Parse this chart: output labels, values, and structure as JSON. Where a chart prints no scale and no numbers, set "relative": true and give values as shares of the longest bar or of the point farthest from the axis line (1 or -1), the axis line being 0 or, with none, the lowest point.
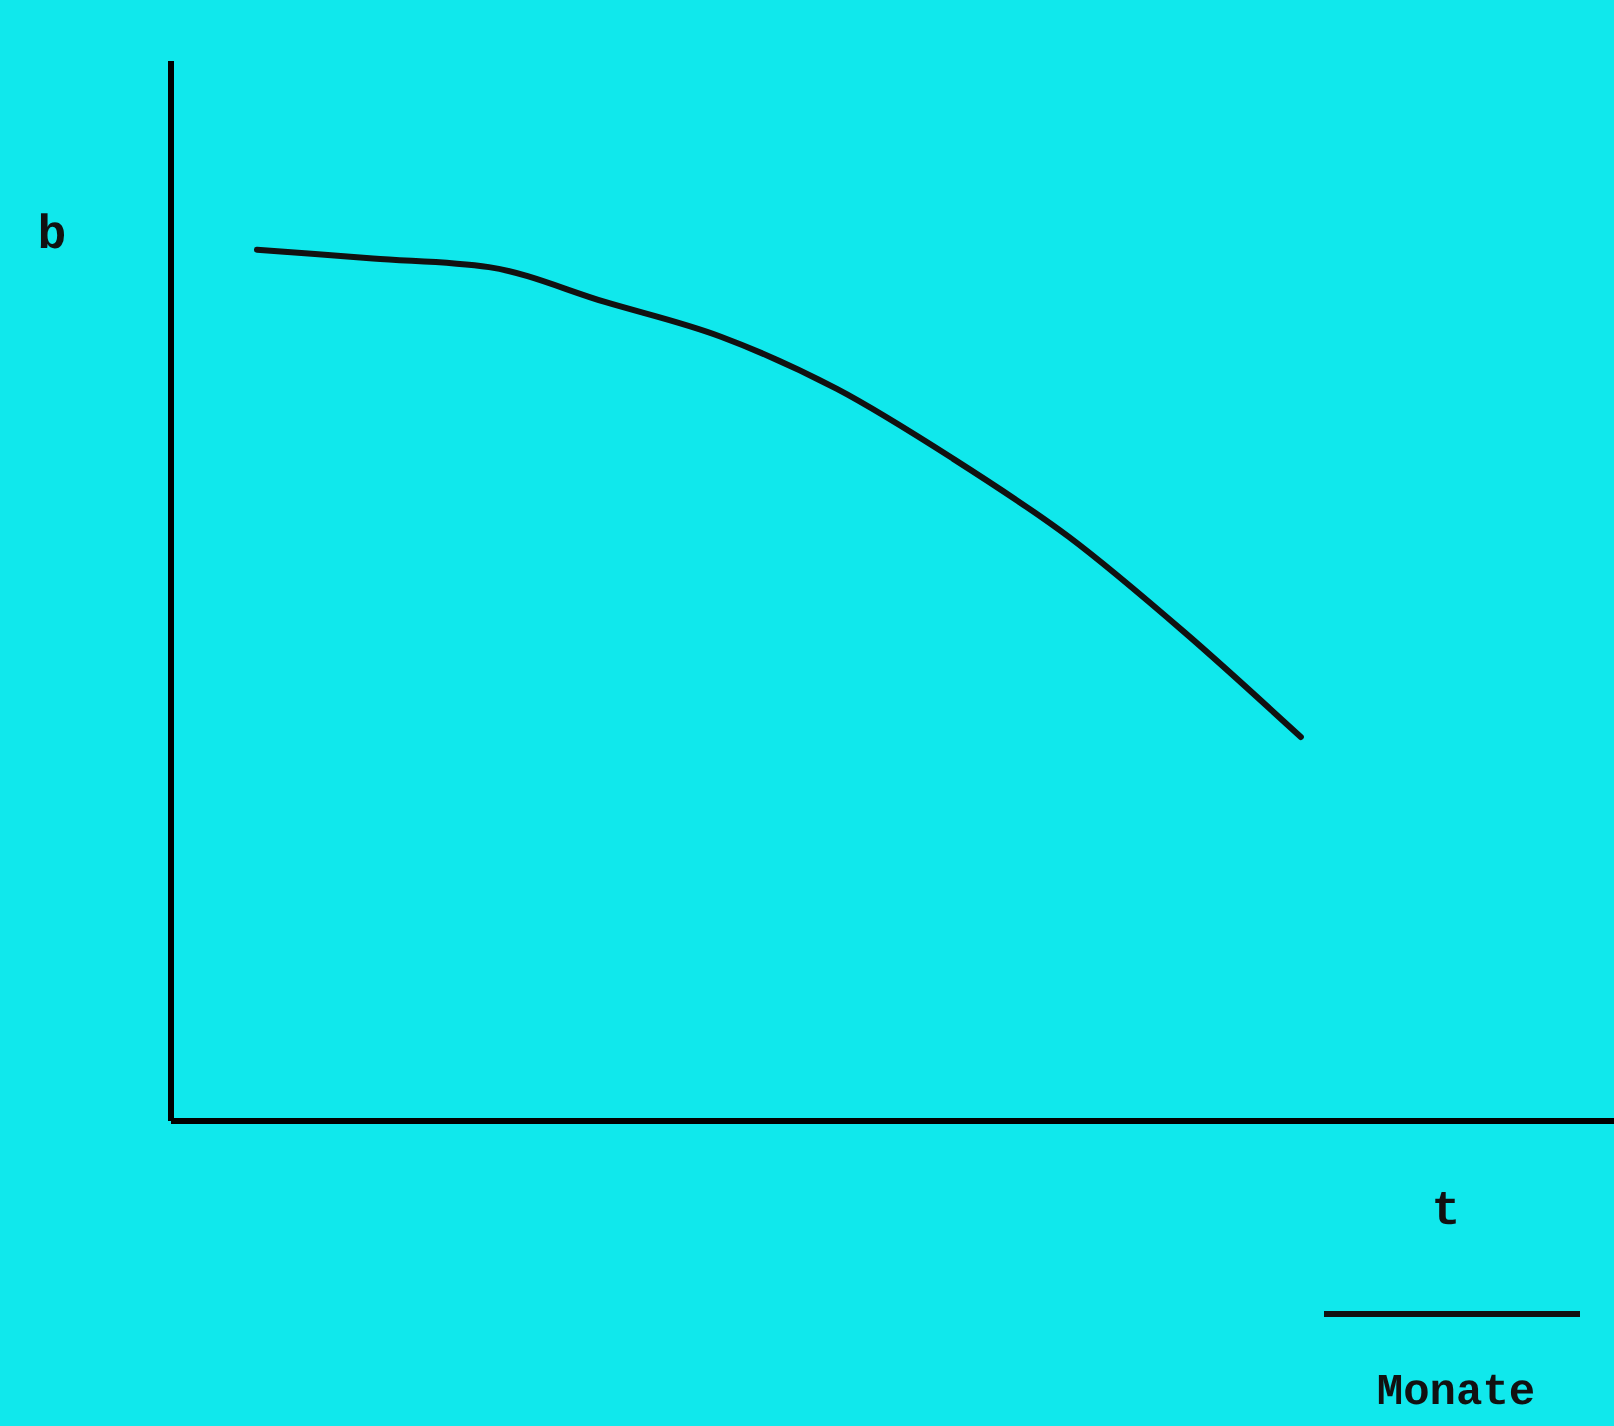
{
  "chart_data": {
    "type": "line",
    "relative": true,
    "xlabel": "t",
    "ylabel": "b",
    "annotations": [
      "Monate"
    ],
    "categories": [
      null,
      null,
      null,
      null,
      null,
      null,
      null,
      null,
      null,
      null
    ],
    "series": [
      {
        "color": "#111111",
        "values": [
          1,
          0.99,
          0.98,
          0.94,
          0.9,
          0.84,
          0.76,
          0.67,
          0.56,
          0.44
        ]
      }
    ],
    "grid": false,
    "marker": "none",
    "line_style": "solid",
    "tick_labels": false
  }
}
